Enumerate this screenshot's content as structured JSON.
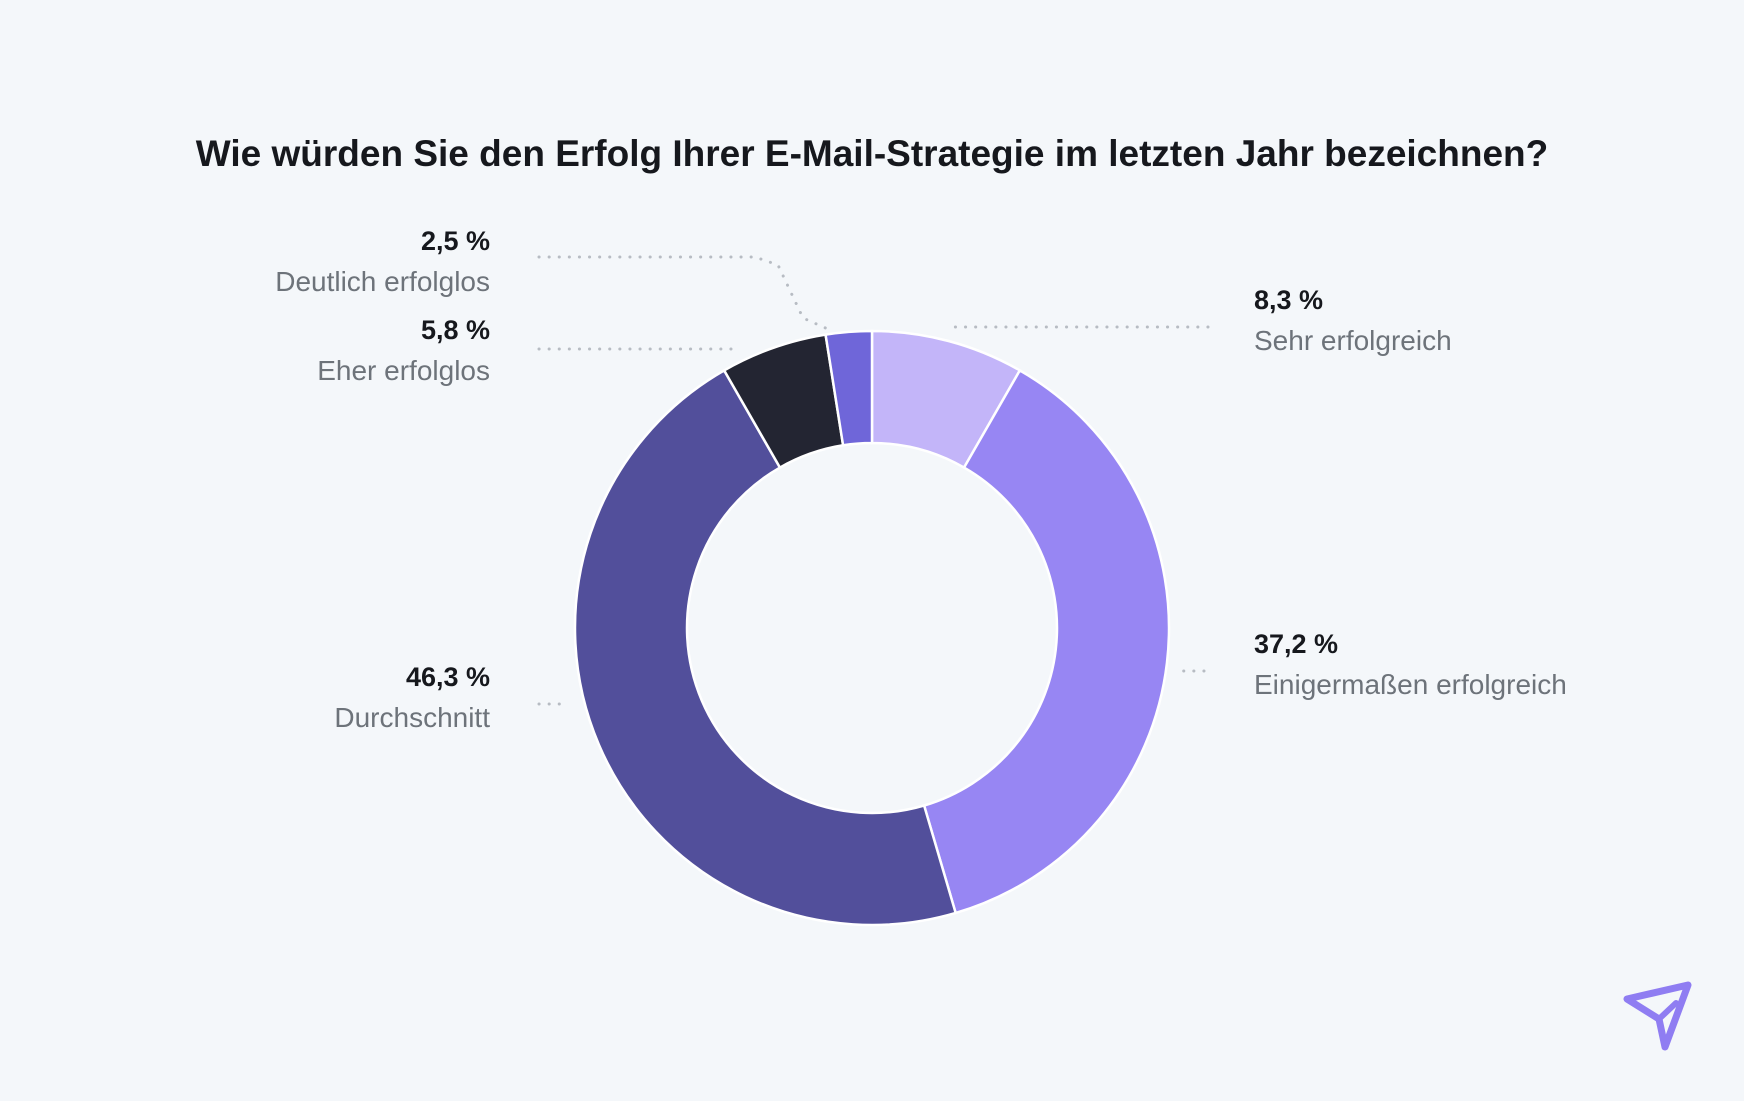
{
  "chart_data": {
    "type": "pie",
    "variant": "donut",
    "title": "Wie würden Sie den Erfolg Ihrer E-Mail-Strategie im letzten Jahr bezeichnen?",
    "unit": "%",
    "slices": [
      {
        "key": "sehr-erfolgreich",
        "label": "Sehr erfolgreich",
        "value": 8.3,
        "value_label": "8,3 %",
        "color": "#c3b5f9",
        "label_side": "right"
      },
      {
        "key": "einigermassen-erfolgreich",
        "label": "Einigermaßen erfolgreich",
        "value": 37.2,
        "value_label": "37,2 %",
        "color": "#9786f3",
        "label_side": "right"
      },
      {
        "key": "durchschnitt",
        "label": "Durchschnitt",
        "value": 46.3,
        "value_label": "46,3 %",
        "color": "#524f9b",
        "label_side": "left"
      },
      {
        "key": "eher-erfolglos",
        "label": "Eher erfolglos",
        "value": 5.8,
        "value_label": "5,8 %",
        "color": "#232532",
        "label_side": "left"
      },
      {
        "key": "deutlich-erfolglos",
        "label": "Deutlich erfolglos",
        "value": 2.5,
        "value_label": "2,5 %",
        "color": "#6f66d9",
        "label_side": "left"
      }
    ]
  },
  "colors": {
    "background": "#f4f7fa",
    "title": "#16181d",
    "value_text": "#16181d",
    "category_text": "#6d737a",
    "leader": "#b7bcc3",
    "logo": "#8f7df2"
  },
  "logo": {
    "icon": "paper-plane-icon"
  }
}
